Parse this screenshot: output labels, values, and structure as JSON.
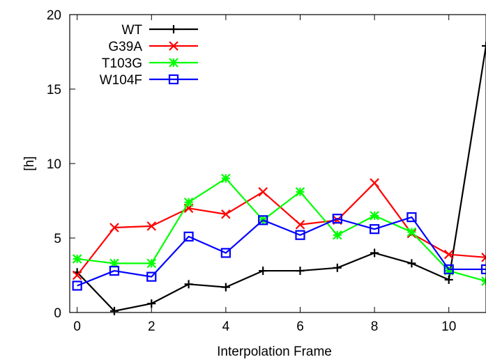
{
  "chart_data": {
    "type": "line",
    "title": "",
    "xlabel": "Interpolation Frame",
    "ylabel": "[h]",
    "xlim": [
      -0.2,
      11
    ],
    "ylim": [
      0,
      20
    ],
    "xticks": [
      0,
      2,
      4,
      6,
      8,
      10
    ],
    "yticks": [
      0,
      5,
      10,
      15,
      20
    ],
    "grid": false,
    "legend_position": "top-left",
    "x": [
      0,
      1,
      2,
      3,
      4,
      5,
      6,
      7,
      8,
      9,
      10,
      11
    ],
    "series": [
      {
        "name": "WT",
        "color": "#000000",
        "marker": "plus",
        "values": [
          2.7,
          0.1,
          0.6,
          1.9,
          1.7,
          2.8,
          2.8,
          3.0,
          4.0,
          3.3,
          2.2,
          17.9
        ]
      },
      {
        "name": "G39A",
        "color": "#ff0000",
        "marker": "cross",
        "values": [
          2.5,
          5.7,
          5.8,
          7.0,
          6.6,
          8.1,
          5.9,
          6.2,
          8.7,
          5.3,
          3.9,
          3.7
        ]
      },
      {
        "name": "T103G",
        "color": "#00ff00",
        "marker": "star",
        "values": [
          3.6,
          3.3,
          3.3,
          7.4,
          9.0,
          6.2,
          8.1,
          5.2,
          6.5,
          5.4,
          2.8,
          2.1
        ]
      },
      {
        "name": "W104F",
        "color": "#0000ff",
        "marker": "square",
        "values": [
          1.8,
          2.8,
          2.4,
          5.1,
          4.0,
          6.2,
          5.2,
          6.3,
          5.6,
          6.4,
          2.9,
          2.9
        ]
      }
    ]
  }
}
